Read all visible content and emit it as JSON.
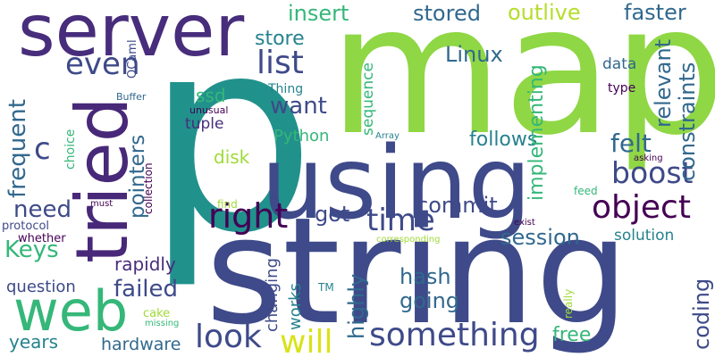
{
  "words": [
    {
      "text": "map",
      "color": "#8fd744",
      "rotated": false
    },
    {
      "text": "p",
      "color": "#21918c",
      "rotated": false
    },
    {
      "text": "string",
      "color": "#3e4a89",
      "rotated": false
    },
    {
      "text": "using",
      "color": "#3e4a89",
      "rotated": false
    },
    {
      "text": "server",
      "color": "#472d7b",
      "rotated": false
    },
    {
      "text": "tried",
      "color": "#482878",
      "rotated": true
    },
    {
      "text": "web",
      "color": "#35b779",
      "rotated": false
    },
    {
      "text": "something",
      "color": "#3e4a89",
      "rotated": false
    },
    {
      "text": "object",
      "color": "#440154",
      "rotated": false
    },
    {
      "text": "boost",
      "color": "#3e4a89",
      "rotated": false
    },
    {
      "text": "right",
      "color": "#440154",
      "rotated": false
    },
    {
      "text": "list",
      "color": "#3e4a89",
      "rotated": false
    },
    {
      "text": "time",
      "color": "#3e4a89",
      "rotated": false
    },
    {
      "text": "even",
      "color": "#3e4a89",
      "rotated": false
    },
    {
      "text": "look",
      "color": "#3e4a89",
      "rotated": false
    },
    {
      "text": "will",
      "color": "#d8e219",
      "rotated": false
    },
    {
      "text": "outlive",
      "color": "#b5de2b",
      "rotated": false
    },
    {
      "text": "faster",
      "color": "#31688e",
      "rotated": false
    },
    {
      "text": "stored",
      "color": "#31688e",
      "rotated": false
    },
    {
      "text": "insert",
      "color": "#35b779",
      "rotated": false
    },
    {
      "text": "store",
      "color": "#26828e",
      "rotated": false
    },
    {
      "text": "Linux",
      "color": "#31688e",
      "rotated": false
    },
    {
      "text": "want",
      "color": "#3e4a89",
      "rotated": false
    },
    {
      "text": "got",
      "color": "#3e4a89",
      "rotated": false
    },
    {
      "text": "commit",
      "color": "#3e4a89",
      "rotated": false
    },
    {
      "text": "session",
      "color": "#31688e",
      "rotated": false
    },
    {
      "text": "hash",
      "color": "#31688e",
      "rotated": false
    },
    {
      "text": "going",
      "color": "#31688e",
      "rotated": false
    },
    {
      "text": "failed",
      "color": "#3e4a89",
      "rotated": false
    },
    {
      "text": "felt",
      "color": "#31688e",
      "rotated": false
    },
    {
      "text": "follows",
      "color": "#26828e",
      "rotated": false
    },
    {
      "text": "need",
      "color": "#3e4a89",
      "rotated": false
    },
    {
      "text": "c",
      "color": "#3e4a89",
      "rotated": false
    },
    {
      "text": "Keys",
      "color": "#35b779",
      "rotated": false
    },
    {
      "text": "rapidly",
      "color": "#472d7b",
      "rotated": false
    },
    {
      "text": "free",
      "color": "#35b779",
      "rotated": false
    },
    {
      "text": "years",
      "color": "#26828e",
      "rotated": false
    },
    {
      "text": "hardware",
      "color": "#31688e",
      "rotated": false
    },
    {
      "text": "question",
      "color": "#3e4a89",
      "rotated": false
    },
    {
      "text": "solution",
      "color": "#26828e",
      "rotated": false
    },
    {
      "text": "data",
      "color": "#31688e",
      "rotated": false
    },
    {
      "text": "type",
      "color": "#440154",
      "rotated": false
    },
    {
      "text": "ssd",
      "color": "#35b779",
      "rotated": false
    },
    {
      "text": "disk",
      "color": "#a0da39",
      "rotated": false
    },
    {
      "text": "tuple",
      "color": "#472d7b",
      "rotated": false
    },
    {
      "text": "Python",
      "color": "#35b779",
      "rotated": false
    },
    {
      "text": "Thing",
      "color": "#26828e",
      "rotated": false
    },
    {
      "text": "frequent",
      "color": "#31688e",
      "rotated": true
    },
    {
      "text": "pointers",
      "color": "#31688e",
      "rotated": true
    },
    {
      "text": "implementing",
      "color": "#35b779",
      "rotated": true
    },
    {
      "text": "relevant",
      "color": "#31688e",
      "rotated": true
    },
    {
      "text": "constraints",
      "color": "#31688e",
      "rotated": true
    },
    {
      "text": "highly",
      "color": "#31688e",
      "rotated": true
    },
    {
      "text": "coding",
      "color": "#3e4a89",
      "rotated": true
    },
    {
      "text": "works",
      "color": "#26828e",
      "rotated": true
    },
    {
      "text": "changing",
      "color": "#3e4a89",
      "rotated": true
    },
    {
      "text": "sequence",
      "color": "#35b779",
      "rotated": true
    },
    {
      "text": "OCaml",
      "color": "#3e4a89",
      "rotated": true
    },
    {
      "text": "choice",
      "color": "#35b779",
      "rotated": true
    },
    {
      "text": "collection",
      "color": "#440154",
      "rotated": true
    },
    {
      "text": "really",
      "color": "#a0da39",
      "rotated": true
    },
    {
      "text": "Buffer",
      "color": "#31688e",
      "rotated": false
    },
    {
      "text": "unusual",
      "color": "#440154",
      "rotated": false
    },
    {
      "text": "Array",
      "color": "#26828e",
      "rotated": false
    },
    {
      "text": "asking",
      "color": "#440154",
      "rotated": false
    },
    {
      "text": "feed",
      "color": "#35b779",
      "rotated": false
    },
    {
      "text": "exist",
      "color": "#440154",
      "rotated": false
    },
    {
      "text": "find",
      "color": "#a0da39",
      "rotated": false
    },
    {
      "text": "must",
      "color": "#440154",
      "rotated": false
    },
    {
      "text": "protocol",
      "color": "#3e4a89",
      "rotated": false
    },
    {
      "text": "whether",
      "color": "#440154",
      "rotated": false
    },
    {
      "text": "corresponding",
      "color": "#a0da39",
      "rotated": false
    },
    {
      "text": "TM",
      "color": "#26828e",
      "rotated": false
    },
    {
      "text": "cake",
      "color": "#a0da39",
      "rotated": false
    },
    {
      "text": "missing",
      "color": "#35b779",
      "rotated": false
    }
  ]
}
